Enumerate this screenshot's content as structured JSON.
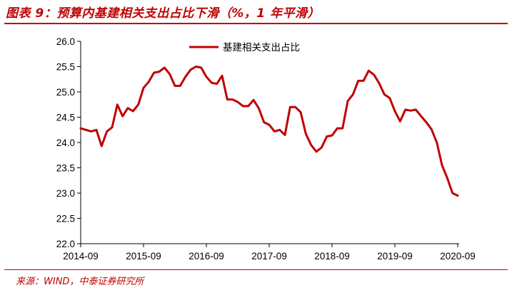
{
  "header": {
    "title": "图表 9：预算内基建相关支出占比下滑（%，1 年平滑）"
  },
  "footer": {
    "source": "来源：WIND，中泰证券研究所"
  },
  "colors": {
    "accent": "#c00000",
    "series": "#c00000"
  },
  "chart_data": {
    "type": "line",
    "title": "",
    "xlabel": "",
    "ylabel": "",
    "ylim": [
      22.0,
      26.0
    ],
    "yticks": [
      "22.0",
      "22.5",
      "23.0",
      "23.5",
      "24.0",
      "24.5",
      "25.0",
      "25.5",
      "26.0"
    ],
    "xticks": [
      "2014-09",
      "2015-09",
      "2016-09",
      "2017-09",
      "2018-09",
      "2019-09",
      "2020-09"
    ],
    "grid": false,
    "legend_position": "top-center",
    "series": [
      {
        "name": "基建相关支出占比",
        "color": "#c00000",
        "x": [
          "2014-09",
          "2014-10",
          "2014-11",
          "2014-12",
          "2015-01",
          "2015-02",
          "2015-03",
          "2015-04",
          "2015-05",
          "2015-06",
          "2015-07",
          "2015-08",
          "2015-09",
          "2015-10",
          "2015-11",
          "2015-12",
          "2016-01",
          "2016-02",
          "2016-03",
          "2016-04",
          "2016-05",
          "2016-06",
          "2016-07",
          "2016-08",
          "2016-09",
          "2016-10",
          "2016-11",
          "2016-12",
          "2017-01",
          "2017-02",
          "2017-03",
          "2017-04",
          "2017-05",
          "2017-06",
          "2017-07",
          "2017-08",
          "2017-09",
          "2017-10",
          "2017-11",
          "2017-12",
          "2018-01",
          "2018-02",
          "2018-03",
          "2018-04",
          "2018-05",
          "2018-06",
          "2018-07",
          "2018-08",
          "2018-09",
          "2018-10",
          "2018-11",
          "2018-12",
          "2019-01",
          "2019-02",
          "2019-03",
          "2019-04",
          "2019-05",
          "2019-06",
          "2019-07",
          "2019-08",
          "2019-09",
          "2019-10",
          "2019-11",
          "2019-12",
          "2020-01",
          "2020-02",
          "2020-03",
          "2020-04",
          "2020-05",
          "2020-06",
          "2020-07",
          "2020-08",
          "2020-09"
        ],
        "y": [
          24.28,
          24.25,
          24.22,
          24.25,
          23.93,
          24.22,
          24.3,
          24.75,
          24.52,
          24.68,
          24.62,
          24.75,
          25.08,
          25.2,
          25.38,
          25.4,
          25.48,
          25.35,
          25.12,
          25.12,
          25.3,
          25.44,
          25.5,
          25.48,
          25.3,
          25.18,
          25.16,
          25.32,
          24.85,
          24.85,
          24.8,
          24.72,
          24.72,
          24.84,
          24.68,
          24.4,
          24.35,
          24.22,
          24.25,
          24.15,
          24.7,
          24.7,
          24.6,
          24.17,
          23.95,
          23.82,
          23.9,
          24.12,
          24.14,
          24.28,
          24.28,
          24.82,
          24.95,
          25.22,
          25.22,
          25.42,
          25.34,
          25.17,
          24.95,
          24.88,
          24.62,
          24.42,
          24.65,
          24.63,
          24.65,
          24.52,
          24.4,
          24.26,
          24.0,
          23.55,
          23.3,
          23.0,
          22.95
        ]
      }
    ]
  }
}
